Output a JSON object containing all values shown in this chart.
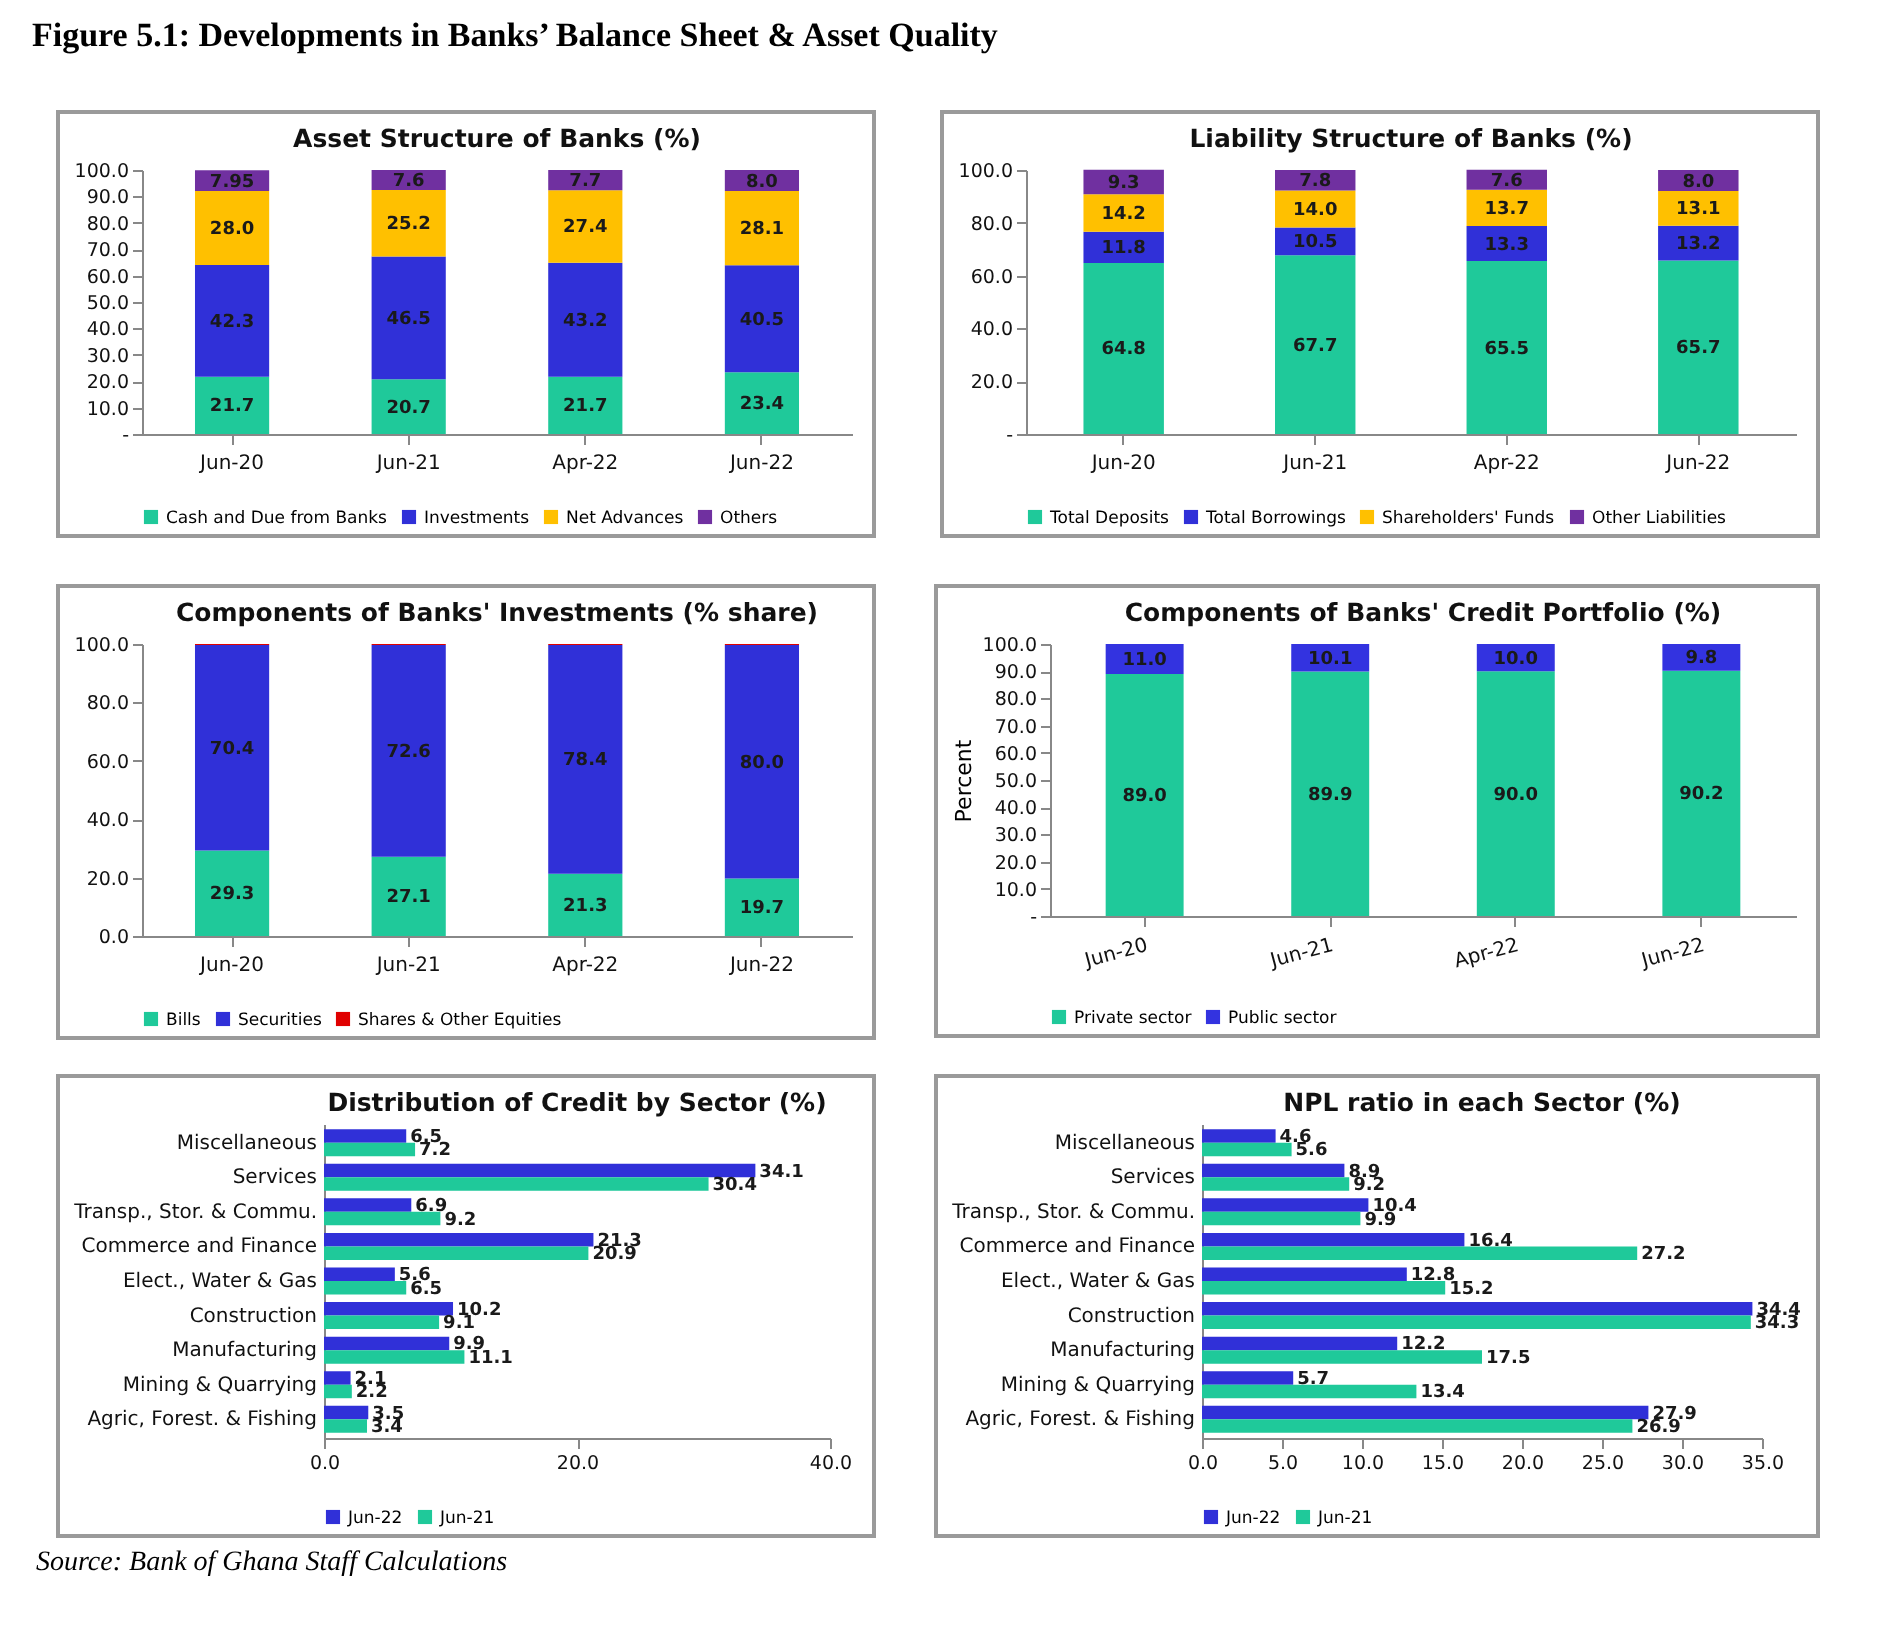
{
  "chart_data": [
    {
      "type": "other",
      "title": "Figure 5.1: Developments in Banks’ Balance Sheet & Asset Quality"
    },
    {
      "type": "bar",
      "title": "Asset Structure of Banks (%)",
      "stacked": true,
      "legend": "bottom",
      "categories": [
        "Jun-20",
        "Jun-21",
        "Apr-22",
        "Jun-22"
      ],
      "ylim": [
        0,
        100
      ],
      "yticks": [
        {
          "value": 0,
          "label": "-"
        },
        {
          "value": 10,
          "label": "10.0"
        },
        {
          "value": 20,
          "label": "20.0"
        },
        {
          "value": 30,
          "label": "30.0"
        },
        {
          "value": 40,
          "label": "40.0"
        },
        {
          "value": 50,
          "label": "50.0"
        },
        {
          "value": 60,
          "label": "60.0"
        },
        {
          "value": 70,
          "label": "70.0"
        },
        {
          "value": 80,
          "label": "80.0"
        },
        {
          "value": 90,
          "label": "90.0"
        },
        {
          "value": 100,
          "label": "100.0"
        }
      ],
      "series": [
        {
          "name": "Cash and Due from Banks",
          "color": "#1fc99a",
          "values": [
            21.7,
            20.7,
            21.7,
            23.4
          ],
          "value_labels": [
            "21.7",
            "20.7",
            "21.7",
            "23.4"
          ]
        },
        {
          "name": "Investments",
          "color": "#3030d8",
          "values": [
            42.3,
            46.5,
            43.2,
            40.5
          ],
          "value_labels": [
            "42.3",
            "46.5",
            "43.2",
            "40.5"
          ]
        },
        {
          "name": "Net Advances",
          "color": "#ffc000",
          "values": [
            28.0,
            25.2,
            27.4,
            28.1
          ],
          "value_labels": [
            "28.0",
            "25.2",
            "27.4",
            "28.1"
          ]
        },
        {
          "name": "Others",
          "color": "#7030a0",
          "values": [
            7.95,
            7.6,
            7.7,
            8.0
          ],
          "value_labels": [
            "7.95",
            "7.6",
            "7.7",
            "8.0"
          ]
        }
      ]
    },
    {
      "type": "bar",
      "title": "Liability Structure of Banks (%)",
      "stacked": true,
      "legend": "bottom",
      "categories": [
        "Jun-20",
        "Jun-21",
        "Apr-22",
        "Jun-22"
      ],
      "ylim": [
        0,
        100
      ],
      "yticks": [
        {
          "value": 0,
          "label": "-"
        },
        {
          "value": 20,
          "label": "20.0"
        },
        {
          "value": 40,
          "label": "40.0"
        },
        {
          "value": 60,
          "label": "60.0"
        },
        {
          "value": 80,
          "label": "80.0"
        },
        {
          "value": 100,
          "label": "100.0"
        }
      ],
      "series": [
        {
          "name": "Total Deposits",
          "color": "#1fc99a",
          "values": [
            64.8,
            67.7,
            65.5,
            65.7
          ],
          "value_labels": [
            "64.8",
            "67.7",
            "65.5",
            "65.7"
          ]
        },
        {
          "name": "Total Borrowings",
          "color": "#3030d8",
          "values": [
            11.8,
            10.5,
            13.3,
            13.2
          ],
          "value_labels": [
            "11.8",
            "10.5",
            "13.3",
            "13.2"
          ]
        },
        {
          "name": "Shareholders' Funds",
          "color": "#ffc000",
          "values": [
            14.2,
            14.0,
            13.7,
            13.1
          ],
          "value_labels": [
            "14.2",
            "14.0",
            "13.7",
            "13.1"
          ]
        },
        {
          "name": "Other Liabilities",
          "color": "#7030a0",
          "values": [
            9.3,
            7.8,
            7.6,
            8.0
          ],
          "value_labels": [
            "9.3",
            "7.8",
            "7.6",
            "8.0"
          ]
        }
      ]
    },
    {
      "type": "bar",
      "title": "Components of Banks' Investments (% share)",
      "stacked": true,
      "legend": "bottom",
      "categories": [
        "Jun-20",
        "Jun-21",
        "Apr-22",
        "Jun-22"
      ],
      "ylim": [
        0,
        100
      ],
      "yticks": [
        {
          "value": 0,
          "label": "0.0"
        },
        {
          "value": 20,
          "label": "20.0"
        },
        {
          "value": 40,
          "label": "40.0"
        },
        {
          "value": 60,
          "label": "60.0"
        },
        {
          "value": 80,
          "label": "80.0"
        },
        {
          "value": 100,
          "label": "100.0"
        }
      ],
      "series": [
        {
          "name": "Bills",
          "color": "#1fc99a",
          "values": [
            29.3,
            27.1,
            21.3,
            19.7
          ],
          "value_labels": [
            "29.3",
            "27.1",
            "21.3",
            "19.7"
          ]
        },
        {
          "name": "Securities",
          "color": "#3030d8",
          "values": [
            70.4,
            72.6,
            78.4,
            80.0
          ],
          "value_labels": [
            "70.4",
            "72.6",
            "78.4",
            "80.0"
          ]
        },
        {
          "name": "Shares & Other Equities",
          "color": "#e00000",
          "values": [
            0.3,
            0.3,
            0.3,
            0.3
          ]
        }
      ]
    },
    {
      "type": "bar",
      "title": "Components of Banks' Credit Portfolio (%)",
      "ylabel": "Percent",
      "stacked": true,
      "legend": "bottom",
      "categories": [
        "Jun-20",
        "Jun-21",
        "Apr-22",
        "Jun-22"
      ],
      "ylim": [
        0,
        100
      ],
      "yticks": [
        {
          "value": 0,
          "label": "-"
        },
        {
          "value": 10,
          "label": "10.0"
        },
        {
          "value": 20,
          "label": "20.0"
        },
        {
          "value": 30,
          "label": "30.0"
        },
        {
          "value": 40,
          "label": "40.0"
        },
        {
          "value": 50,
          "label": "50.0"
        },
        {
          "value": 60,
          "label": "60.0"
        },
        {
          "value": 70,
          "label": "70.0"
        },
        {
          "value": 80,
          "label": "80.0"
        },
        {
          "value": 90,
          "label": "90.0"
        },
        {
          "value": 100,
          "label": "100.0"
        }
      ],
      "series": [
        {
          "name": "Private sector",
          "color": "#1fc99a",
          "values": [
            89.0,
            89.9,
            90.0,
            90.2
          ],
          "value_labels": [
            "89.0",
            "89.9",
            "90.0",
            "90.2"
          ]
        },
        {
          "name": "Public sector",
          "color": "#3333e0",
          "values": [
            11.0,
            10.1,
            10.0,
            9.8
          ],
          "value_labels": [
            "11.0",
            "10.1",
            "10.0",
            "9.8"
          ]
        }
      ]
    },
    {
      "type": "bar",
      "title": "Distribution of Credit by Sector (%)",
      "orientation": "horizontal",
      "legend": "bottom",
      "categories": [
        "Miscellaneous",
        "Services",
        "Transp., Stor. & Commu.",
        "Commerce and Finance",
        "Elect., Water & Gas",
        "Construction",
        "Manufacturing",
        "Mining & Quarrying",
        "Agric, Forest. & Fishing"
      ],
      "xlim": [
        0,
        40
      ],
      "xticks": [
        {
          "value": 0,
          "label": "0.0"
        },
        {
          "value": 20,
          "label": "20.0"
        },
        {
          "value": 40,
          "label": "40.0"
        }
      ],
      "series": [
        {
          "name": "Jun-22",
          "color": "#3030d8",
          "values": [
            6.5,
            34.1,
            6.9,
            21.3,
            5.6,
            10.2,
            9.9,
            2.1,
            3.5
          ],
          "value_labels": [
            "6.5",
            "34.1",
            "6.9",
            "21.3",
            "5.6",
            "10.2",
            "9.9",
            "2.1",
            "3.5"
          ]
        },
        {
          "name": "Jun-21",
          "color": "#1fc99a",
          "values": [
            7.2,
            30.4,
            9.2,
            20.9,
            6.5,
            9.1,
            11.1,
            2.2,
            3.4
          ],
          "value_labels": [
            "7.2",
            "30.4",
            "9.2",
            "20.9",
            "6.5",
            "9.1",
            "11.1",
            "2.2",
            "3.4"
          ]
        }
      ]
    },
    {
      "type": "bar",
      "title": "NPL ratio in each Sector (%)",
      "orientation": "horizontal",
      "legend": "bottom",
      "categories": [
        "Miscellaneous",
        "Services",
        "Transp., Stor. & Commu.",
        "Commerce and Finance",
        "Elect., Water & Gas",
        "Construction",
        "Manufacturing",
        "Mining & Quarrying",
        "Agric, Forest. & Fishing"
      ],
      "xlim": [
        0,
        35
      ],
      "xticks": [
        {
          "value": 0,
          "label": "0.0"
        },
        {
          "value": 5,
          "label": "5.0"
        },
        {
          "value": 10,
          "label": "10.0"
        },
        {
          "value": 15,
          "label": "15.0"
        },
        {
          "value": 20,
          "label": "20.0"
        },
        {
          "value": 25,
          "label": "25.0"
        },
        {
          "value": 30,
          "label": "30.0"
        },
        {
          "value": 35,
          "label": "35.0"
        }
      ],
      "series": [
        {
          "name": "Jun-22",
          "color": "#3030d8",
          "values": [
            4.6,
            8.9,
            10.4,
            16.4,
            12.8,
            34.4,
            12.2,
            5.7,
            27.9
          ],
          "value_labels": [
            "4.6",
            "8.9",
            "10.4",
            "16.4",
            "12.8",
            "34.4",
            "12.2",
            "5.7",
            "27.9"
          ]
        },
        {
          "name": "Jun-21",
          "color": "#1fc99a",
          "values": [
            5.6,
            9.2,
            9.9,
            27.2,
            15.2,
            34.3,
            17.5,
            13.4,
            26.9
          ],
          "value_labels": [
            "5.6",
            "9.2",
            "9.9",
            "27.2",
            "15.2",
            "34.3",
            "17.5",
            "13.4",
            "26.9"
          ]
        }
      ]
    },
    {
      "type": "other",
      "annotations": [
        "Source: Bank of Ghana Staff Calculations"
      ]
    }
  ]
}
